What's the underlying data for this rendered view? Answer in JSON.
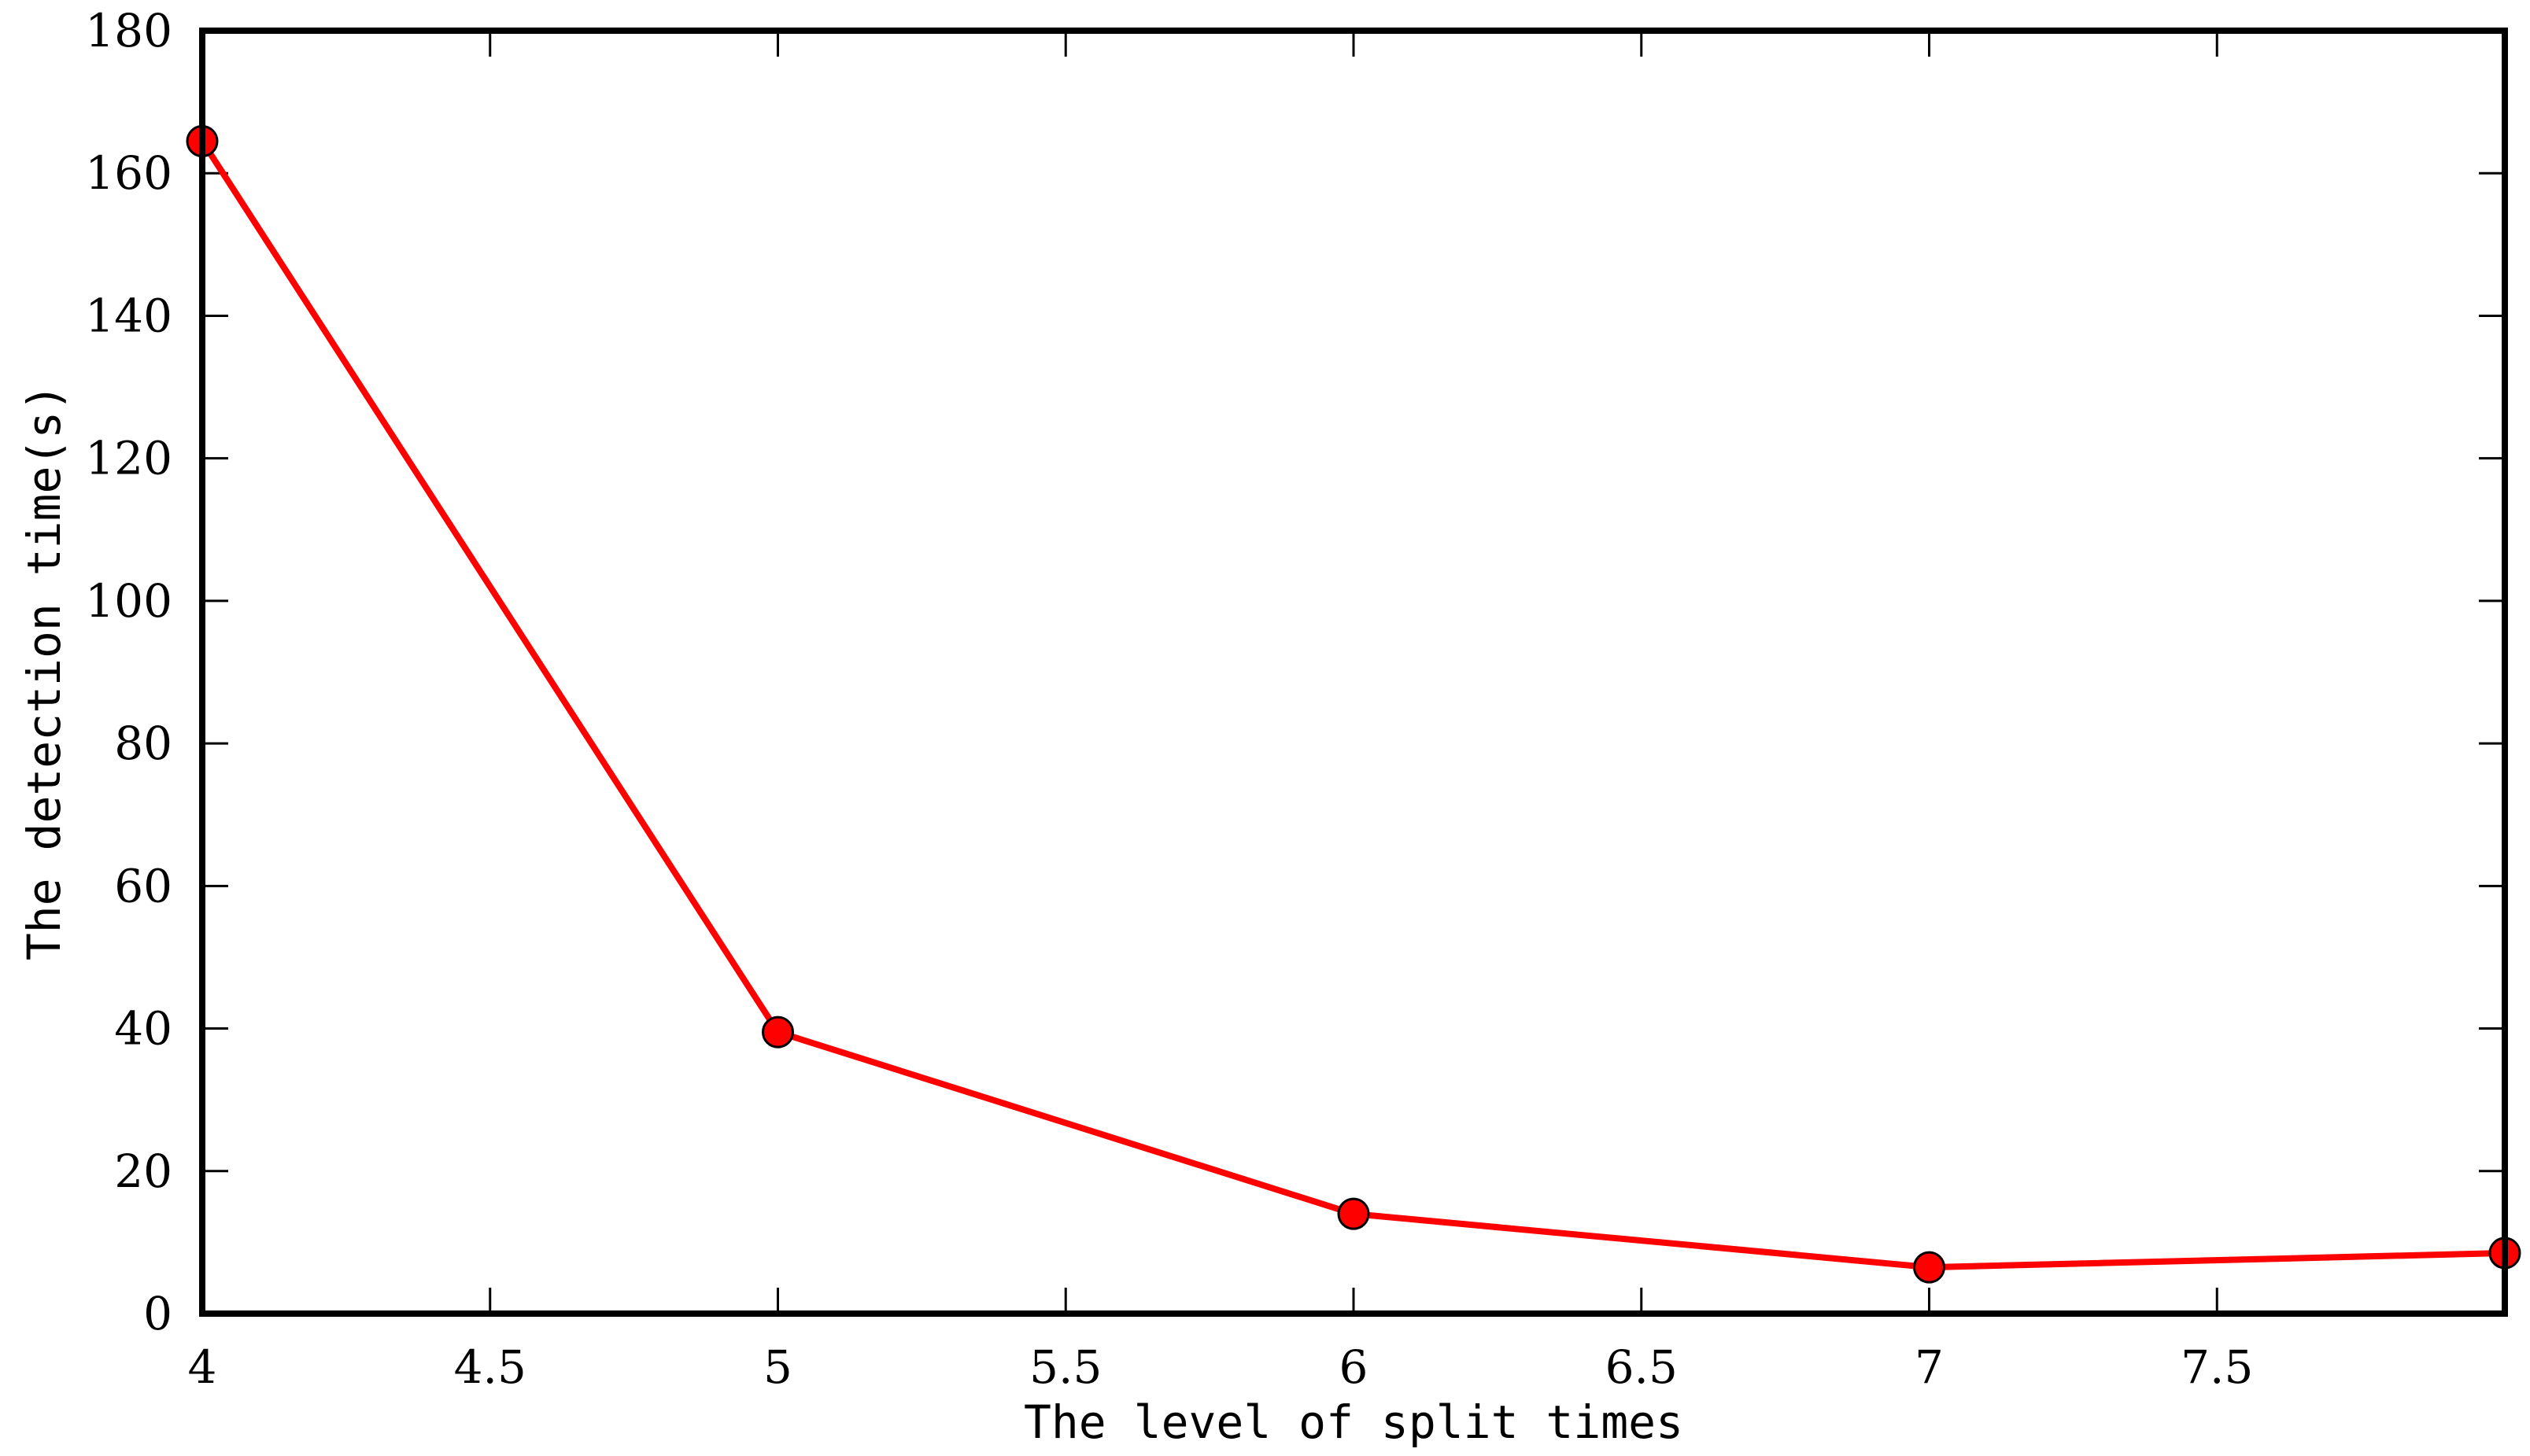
{
  "chart_data": {
    "type": "line",
    "title": "",
    "xlabel": "The level of split times",
    "ylabel": "The detection time(s)",
    "xlim": [
      4,
      8
    ],
    "ylim": [
      0,
      180
    ],
    "x_ticks": [
      4,
      4.5,
      5,
      5.5,
      6,
      6.5,
      7,
      7.5
    ],
    "y_ticks": [
      0,
      20,
      40,
      60,
      80,
      100,
      120,
      140,
      160,
      180
    ],
    "grid": false,
    "legend": "none",
    "series": [
      {
        "color": "#ff0000",
        "marker": "circle",
        "marker_fill": "#ff0000",
        "marker_edge": "#000000",
        "x": [
          4,
          5,
          6,
          7,
          8
        ],
        "y": [
          164.5,
          39.5,
          14,
          6.5,
          8.5
        ]
      }
    ]
  }
}
